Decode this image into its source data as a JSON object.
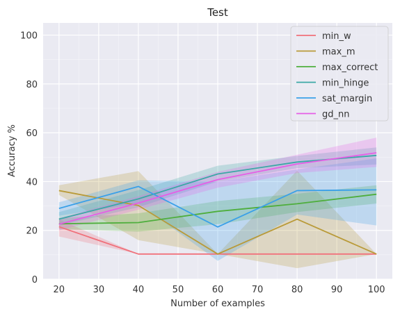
{
  "chart_data": {
    "type": "line",
    "title": "Test",
    "xlabel": "Number of examples",
    "ylabel": "Accuracy %",
    "xlim": [
      16,
      104
    ],
    "ylim": [
      0,
      105
    ],
    "xticks": [
      20,
      30,
      40,
      50,
      60,
      70,
      80,
      90,
      100
    ],
    "yticks": [
      0,
      20,
      40,
      60,
      80,
      100
    ],
    "grid": true,
    "legend_position": "top-right",
    "x": [
      20,
      40,
      60,
      80,
      100
    ],
    "series": [
      {
        "name": "min_w",
        "color": "#f0707a",
        "values": [
          21.5,
          10.3,
          10.3,
          10.3,
          10.3
        ],
        "lower": [
          17.5,
          10.3,
          10.3,
          10.3,
          10.3
        ],
        "upper": [
          24.5,
          10.3,
          10.3,
          10.3,
          10.3
        ]
      },
      {
        "name": "max_m",
        "color": "#b99a38",
        "values": [
          36.3,
          30.2,
          10.3,
          24.6,
          10.3
        ],
        "lower": [
          34.5,
          16.0,
          10.3,
          4.5,
          10.3
        ],
        "upper": [
          38.5,
          44.3,
          10.3,
          44.5,
          10.3
        ]
      },
      {
        "name": "max_correct",
        "color": "#4eae3c",
        "values": [
          22.7,
          23.2,
          27.8,
          30.9,
          34.8
        ],
        "lower": [
          20.5,
          19.5,
          22.5,
          27.5,
          31.0
        ],
        "upper": [
          25.0,
          27.0,
          32.0,
          35.0,
          38.5
        ]
      },
      {
        "name": "min_hinge",
        "color": "#3ba8a5",
        "values": [
          24.6,
          32.9,
          43.1,
          48.0,
          50.7
        ],
        "lower": [
          22.0,
          29.5,
          40.0,
          45.5,
          47.0
        ],
        "upper": [
          27.5,
          36.5,
          46.5,
          50.5,
          54.0
        ]
      },
      {
        "name": "sat_margin",
        "color": "#3aa0e8",
        "values": [
          29.0,
          38.0,
          21.4,
          36.3,
          36.6
        ],
        "lower": [
          26.0,
          31.0,
          7.5,
          26.5,
          22.0
        ],
        "upper": [
          31.5,
          40.5,
          40.0,
          45.0,
          49.5
        ]
      },
      {
        "name": "gd_nn",
        "color": "#e65ee6",
        "values": [
          22.5,
          31.2,
          40.8,
          47.2,
          51.8
        ],
        "lower": [
          20.0,
          28.5,
          37.5,
          43.5,
          46.0
        ],
        "upper": [
          25.0,
          34.0,
          44.0,
          51.0,
          58.0
        ]
      }
    ]
  }
}
